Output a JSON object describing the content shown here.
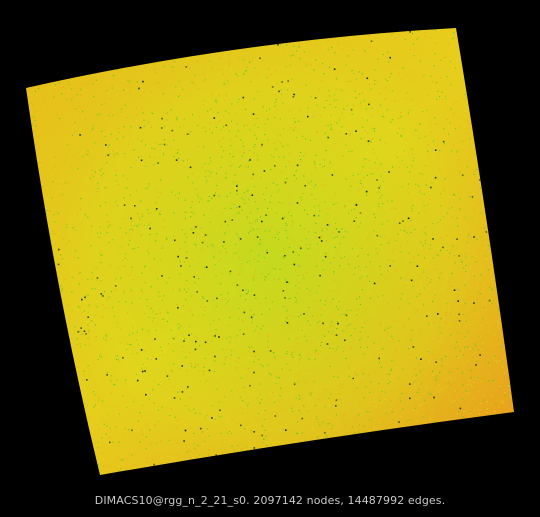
{
  "caption": "DIMACS10@rgg_n_2_21_s0. 2097142 nodes, 14487992 edges.",
  "colors": {
    "background": "#000000",
    "fill_primary": "#e6d21a",
    "fill_edge": "#e8a21c",
    "fill_center": "#b8dc1e",
    "speckle_green": "#4fc81e",
    "speckle_dark": "#06291a"
  }
}
